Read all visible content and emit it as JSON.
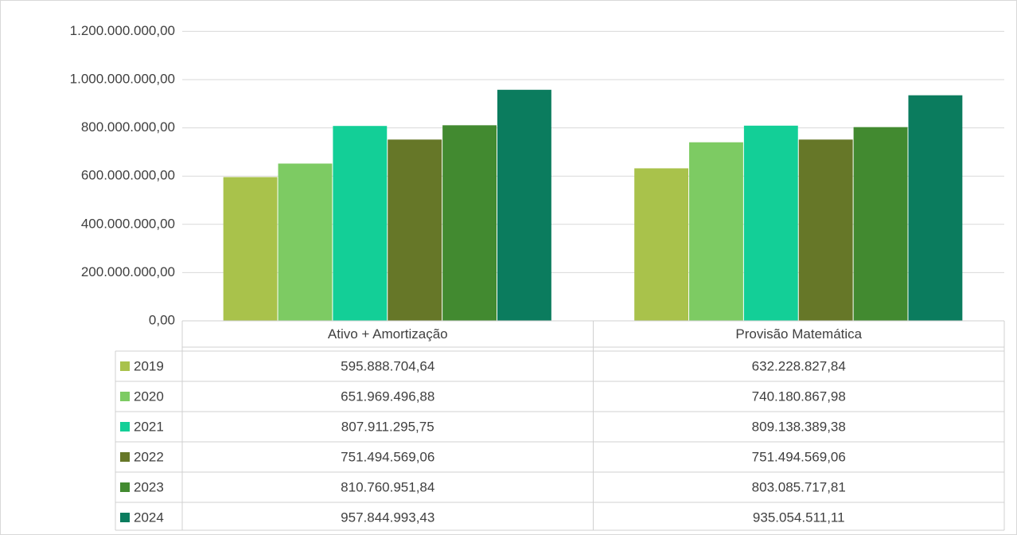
{
  "chart_data": {
    "type": "bar",
    "categories": [
      "Ativo + Amortização",
      "Provisão Matemática"
    ],
    "series": [
      {
        "name": "2019",
        "color": "#a9c24b",
        "values": [
          595888704.64,
          632228827.84
        ],
        "value_labels": [
          "595.888.704,64",
          "632.228.827,84"
        ]
      },
      {
        "name": "2020",
        "color": "#7dcb63",
        "values": [
          651969496.88,
          740180867.98
        ],
        "value_labels": [
          "651.969.496,88",
          "740.180.867,98"
        ]
      },
      {
        "name": "2021",
        "color": "#13cf97",
        "values": [
          807911295.75,
          809138389.38
        ],
        "value_labels": [
          "807.911.295,75",
          "809.138.389,38"
        ]
      },
      {
        "name": "2022",
        "color": "#667728",
        "values": [
          751494569.06,
          751494569.06
        ],
        "value_labels": [
          "751.494.569,06",
          "751.494.569,06"
        ]
      },
      {
        "name": "2023",
        "color": "#428a30",
        "values": [
          810760951.84,
          803085717.81
        ],
        "value_labels": [
          "810.760.951,84",
          "803.085.717,81"
        ]
      },
      {
        "name": "2024",
        "color": "#0b7c5e",
        "values": [
          957844993.43,
          935054511.11
        ],
        "value_labels": [
          "957.844.993,43",
          "935.054.511,11"
        ]
      }
    ],
    "ylim": [
      0,
      1200000000
    ],
    "yticks": [
      {
        "value": 0,
        "label": "0,00"
      },
      {
        "value": 200000000,
        "label": "200.000.000,00"
      },
      {
        "value": 400000000,
        "label": "400.000.000,00"
      },
      {
        "value": 600000000,
        "label": "600.000.000,00"
      },
      {
        "value": 800000000,
        "label": "800.000.000,00"
      },
      {
        "value": 1000000000,
        "label": "1.000.000.000,00"
      },
      {
        "value": 1200000000,
        "label": "1.200.000.000,00"
      }
    ],
    "grid": true
  }
}
